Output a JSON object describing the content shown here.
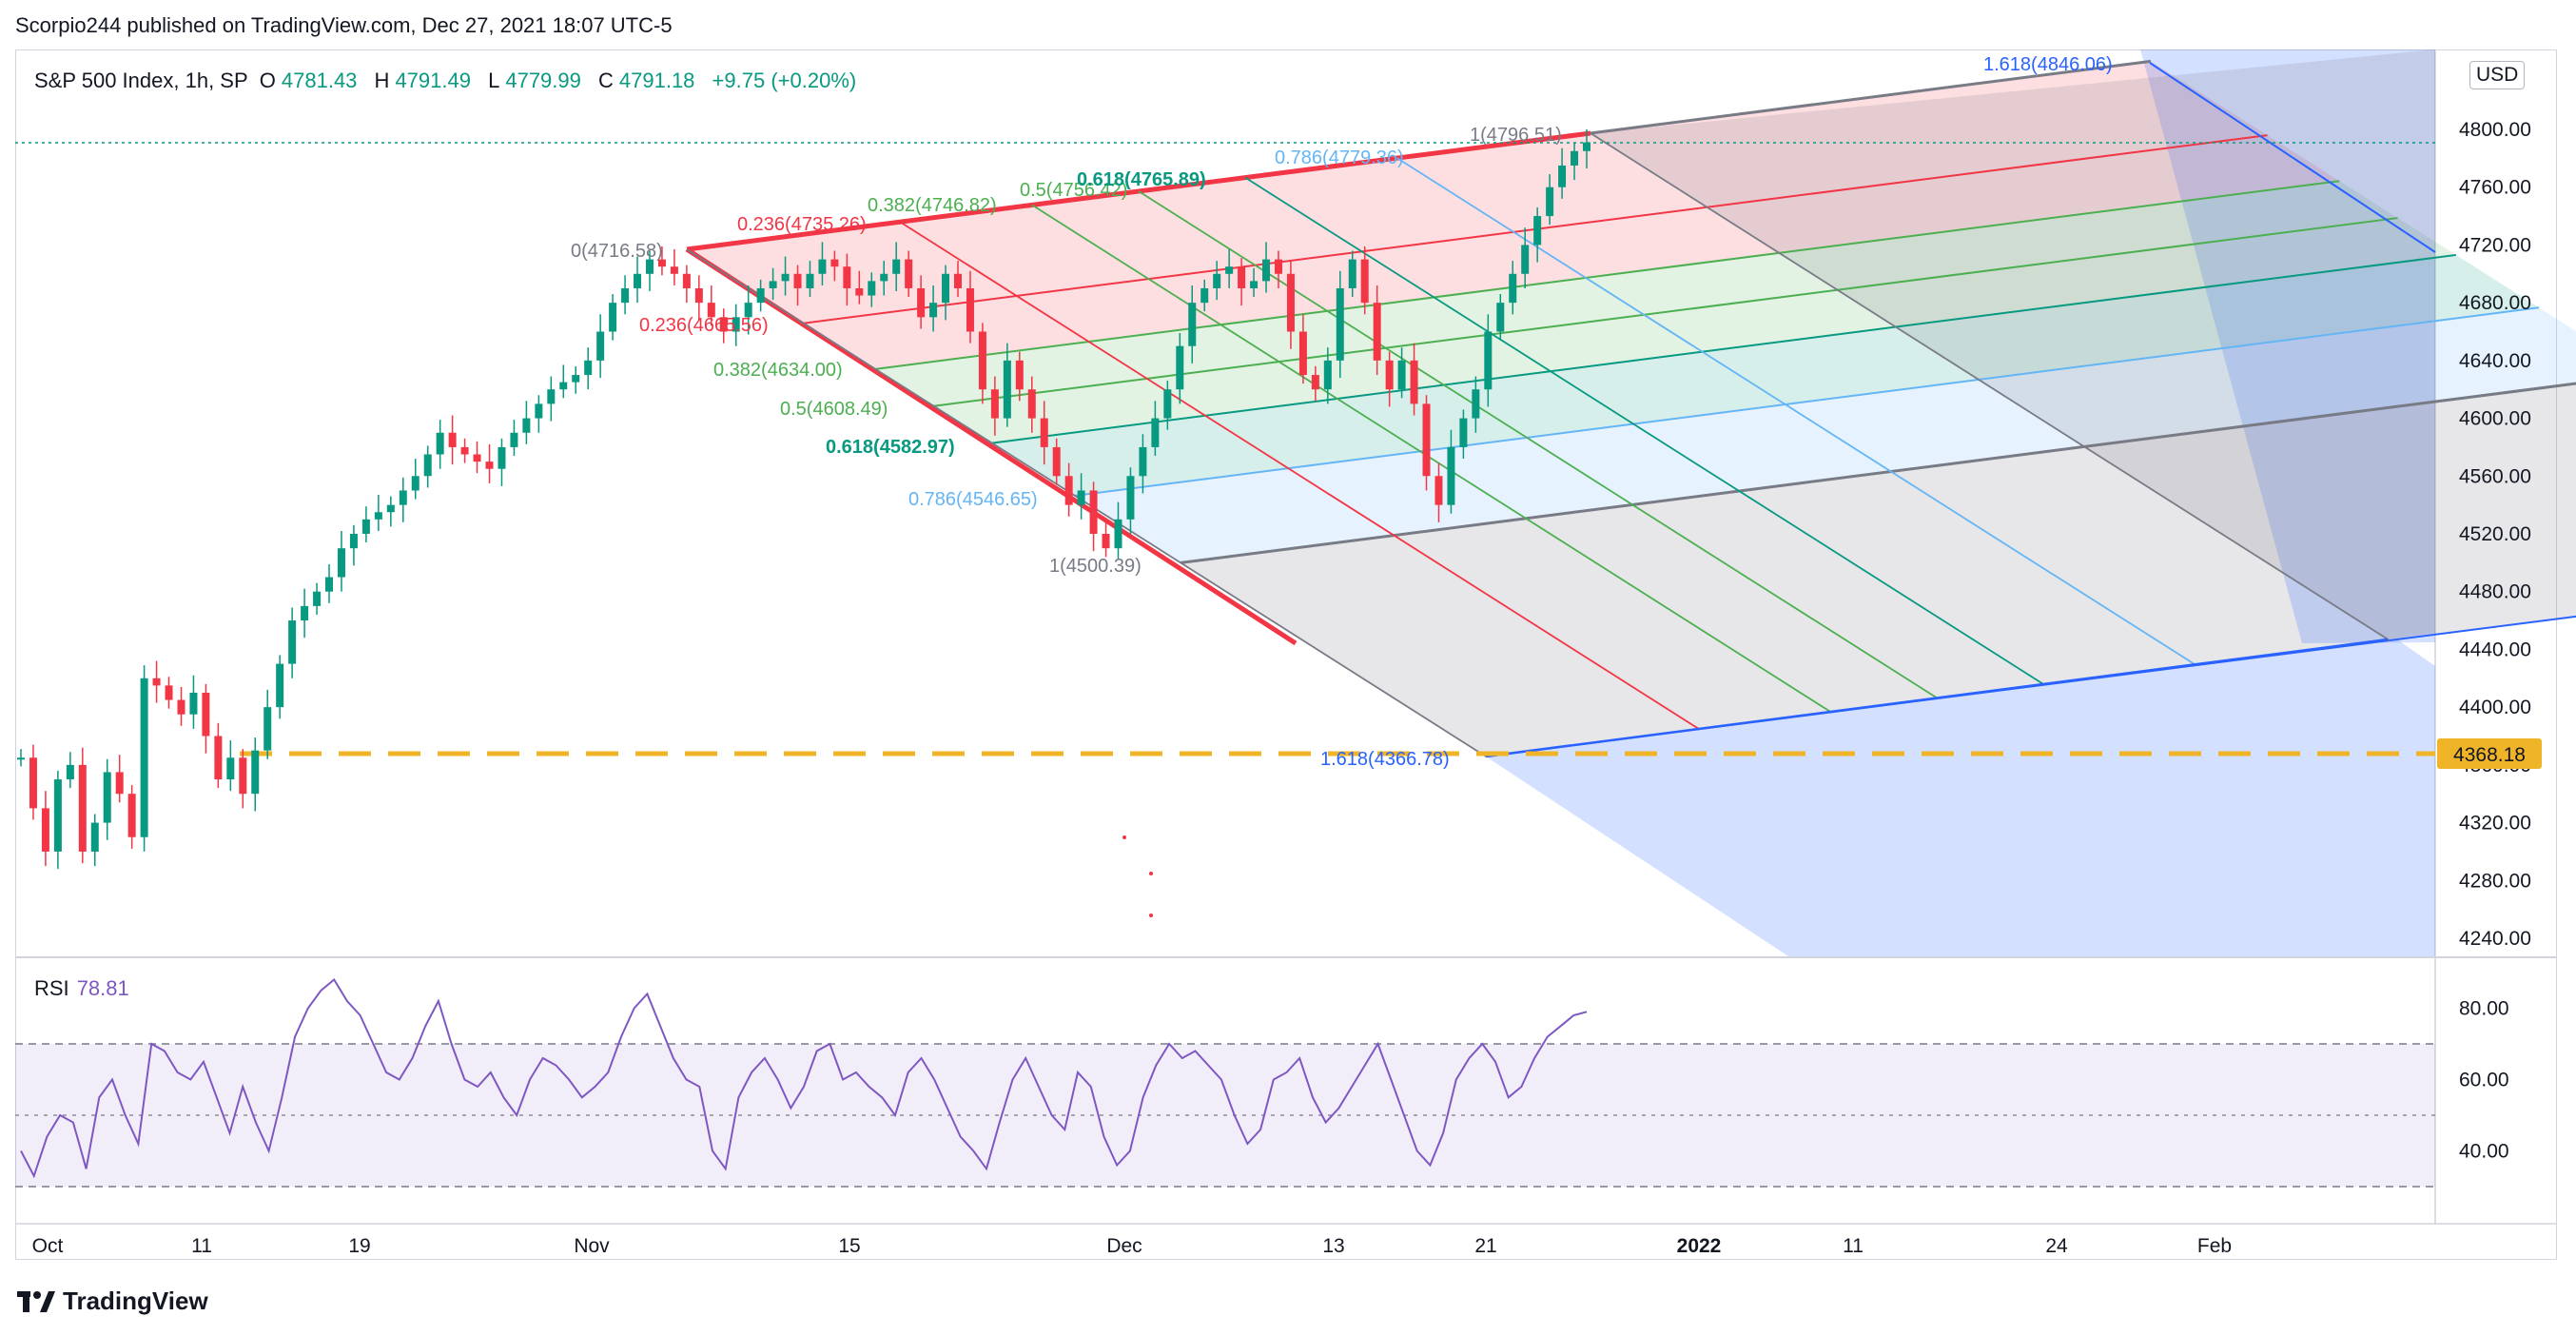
{
  "publisher_line": "Scorpio244 published on TradingView.com, Dec 27, 2021 18:07 UTC-5",
  "header": {
    "symbol": "S&P 500 Index, 1h, SP",
    "o_label": "O",
    "o_value": "4781.43",
    "h_label": "H",
    "h_value": "4791.49",
    "l_label": "L",
    "l_value": "4779.99",
    "c_label": "C",
    "c_value": "4791.18",
    "change": "+9.75 (+0.20%)"
  },
  "rsi": {
    "label": "RSI",
    "value": "78.81"
  },
  "currency": "USD",
  "brand": "TradingView",
  "colors": {
    "up": "#089981",
    "down": "#f23645",
    "rsi": "#7e57c2",
    "trend_blue": "#2962ff",
    "dashed_level": "#f0b429",
    "fib_red": "#f23645",
    "fib_green": "#4caf50",
    "fib_teal": "#089981",
    "fib_lightblue": "#64b5f6",
    "fib_gray": "#787b86"
  },
  "chart_data": [
    {
      "type": "candlestick",
      "title": "S&P 500 Index, 1h, SP",
      "price_axis": [
        "4800.00",
        "4760.00",
        "4720.00",
        "4680.00",
        "4640.00",
        "4600.00",
        "4560.00",
        "4520.00",
        "4480.00",
        "4440.00",
        "4400.00",
        "4360.00",
        "4320.00",
        "4280.00",
        "4240.00"
      ],
      "time_axis": [
        "Oct",
        "11",
        "19",
        "Nov",
        "15",
        "Dec",
        "13",
        "21",
        "2022",
        "11",
        "24",
        "Feb"
      ],
      "ylim": [
        4220,
        4830
      ],
      "last_price": "4791.18",
      "horizontal_level": "4368.18",
      "fib_channel_upper": [
        {
          "label": "0(4716.58)",
          "color": "#787b86"
        },
        {
          "label": "0.236(4735.26)",
          "color": "#f23645"
        },
        {
          "label": "0.382(4746.82)",
          "color": "#4caf50"
        },
        {
          "label": "0.5(4756.42)",
          "color": "#4caf50"
        },
        {
          "label": "0.618(4765.89)",
          "color": "#089981"
        },
        {
          "label": "0.786(4779.36)",
          "color": "#64b5f6"
        },
        {
          "label": "1(4796.51)",
          "color": "#787b86"
        },
        {
          "label": "1.618(4846.06)",
          "color": "#2962ff"
        }
      ],
      "fib_channel_lower": [
        {
          "label": "0(4716.58)",
          "color": "#787b86"
        },
        {
          "label": "0.236(4665.56)",
          "color": "#f23645"
        },
        {
          "label": "0.382(4634.00)",
          "color": "#4caf50"
        },
        {
          "label": "0.5(4608.49)",
          "color": "#4caf50"
        },
        {
          "label": "0.618(4582.97)",
          "color": "#089981"
        },
        {
          "label": "0.786(4546.65)",
          "color": "#64b5f6"
        },
        {
          "label": "1(4500.39)",
          "color": "#787b86"
        },
        {
          "label": "1.618(4366.78)",
          "color": "#2962ff"
        }
      ],
      "close_path": [
        [
          0,
          4365
        ],
        [
          1,
          4330
        ],
        [
          2,
          4300
        ],
        [
          3,
          4350
        ],
        [
          4,
          4360
        ],
        [
          5,
          4300
        ],
        [
          6,
          4320
        ],
        [
          7,
          4355
        ],
        [
          8,
          4340
        ],
        [
          9,
          4310
        ],
        [
          10,
          4420
        ],
        [
          11,
          4415
        ],
        [
          12,
          4405
        ],
        [
          13,
          4395
        ],
        [
          14,
          4410
        ],
        [
          15,
          4380
        ],
        [
          16,
          4350
        ],
        [
          17,
          4365
        ],
        [
          18,
          4340
        ],
        [
          19,
          4370
        ],
        [
          20,
          4400
        ],
        [
          21,
          4430
        ],
        [
          22,
          4460
        ],
        [
          23,
          4470
        ],
        [
          24,
          4480
        ],
        [
          25,
          4490
        ],
        [
          26,
          4510
        ],
        [
          27,
          4520
        ],
        [
          28,
          4530
        ],
        [
          29,
          4535
        ],
        [
          30,
          4540
        ],
        [
          31,
          4550
        ],
        [
          32,
          4560
        ],
        [
          33,
          4575
        ],
        [
          34,
          4590
        ],
        [
          35,
          4580
        ],
        [
          36,
          4575
        ],
        [
          37,
          4570
        ],
        [
          38,
          4565
        ],
        [
          39,
          4580
        ],
        [
          40,
          4590
        ],
        [
          41,
          4600
        ],
        [
          42,
          4610
        ],
        [
          43,
          4620
        ],
        [
          44,
          4625
        ],
        [
          45,
          4630
        ],
        [
          46,
          4640
        ],
        [
          47,
          4660
        ],
        [
          48,
          4680
        ],
        [
          49,
          4690
        ],
        [
          50,
          4700
        ],
        [
          51,
          4710
        ],
        [
          52,
          4705
        ],
        [
          53,
          4700
        ],
        [
          54,
          4690
        ],
        [
          55,
          4680
        ],
        [
          56,
          4670
        ],
        [
          57,
          4660
        ],
        [
          58,
          4670
        ],
        [
          59,
          4680
        ],
        [
          60,
          4690
        ],
        [
          61,
          4695
        ],
        [
          62,
          4700
        ],
        [
          63,
          4690
        ],
        [
          64,
          4700
        ],
        [
          65,
          4710
        ],
        [
          66,
          4705
        ],
        [
          67,
          4690
        ],
        [
          68,
          4685
        ],
        [
          69,
          4695
        ],
        [
          70,
          4700
        ],
        [
          71,
          4710
        ],
        [
          72,
          4690
        ],
        [
          73,
          4670
        ],
        [
          74,
          4680
        ],
        [
          75,
          4700
        ],
        [
          76,
          4690
        ],
        [
          77,
          4660
        ],
        [
          78,
          4620
        ],
        [
          79,
          4600
        ],
        [
          80,
          4640
        ],
        [
          81,
          4620
        ],
        [
          82,
          4600
        ],
        [
          83,
          4580
        ],
        [
          84,
          4560
        ],
        [
          85,
          4540
        ],
        [
          86,
          4550
        ],
        [
          87,
          4520
        ],
        [
          88,
          4510
        ],
        [
          89,
          4530
        ],
        [
          90,
          4560
        ],
        [
          91,
          4580
        ],
        [
          92,
          4600
        ],
        [
          93,
          4620
        ],
        [
          94,
          4650
        ],
        [
          95,
          4680
        ],
        [
          96,
          4690
        ],
        [
          97,
          4700
        ],
        [
          98,
          4705
        ],
        [
          99,
          4690
        ],
        [
          100,
          4695
        ],
        [
          101,
          4710
        ],
        [
          102,
          4700
        ],
        [
          103,
          4660
        ],
        [
          104,
          4630
        ],
        [
          105,
          4620
        ],
        [
          106,
          4640
        ],
        [
          107,
          4690
        ],
        [
          108,
          4710
        ],
        [
          109,
          4680
        ],
        [
          110,
          4640
        ],
        [
          111,
          4620
        ],
        [
          112,
          4640
        ],
        [
          113,
          4610
        ],
        [
          114,
          4560
        ],
        [
          115,
          4540
        ],
        [
          116,
          4580
        ],
        [
          117,
          4600
        ],
        [
          118,
          4620
        ],
        [
          119,
          4660
        ],
        [
          120,
          4680
        ],
        [
          121,
          4700
        ],
        [
          122,
          4720
        ],
        [
          123,
          4740
        ],
        [
          124,
          4760
        ],
        [
          125,
          4775
        ],
        [
          126,
          4785
        ],
        [
          127,
          4791
        ]
      ],
      "rsi_series": {
        "name": "RSI",
        "levels": [
          "80.00",
          "60.00",
          "40.00"
        ],
        "upper": 70,
        "mid": 50,
        "lower": 30,
        "values": [
          40,
          33,
          44,
          50,
          48,
          35,
          55,
          60,
          50,
          42,
          70,
          68,
          62,
          60,
          65,
          55,
          45,
          58,
          48,
          40,
          55,
          72,
          80,
          85,
          88,
          82,
          78,
          70,
          62,
          60,
          66,
          75,
          82,
          70,
          60,
          58,
          62,
          55,
          50,
          60,
          66,
          64,
          60,
          55,
          58,
          62,
          72,
          80,
          84,
          75,
          66,
          60,
          58,
          40,
          35,
          55,
          62,
          66,
          60,
          52,
          58,
          68,
          70,
          60,
          62,
          58,
          55,
          50,
          62,
          66,
          60,
          52,
          44,
          40,
          35,
          48,
          60,
          66,
          58,
          50,
          46,
          62,
          58,
          44,
          36,
          40,
          55,
          64,
          70,
          66,
          68,
          64,
          60,
          50,
          42,
          46,
          60,
          62,
          66,
          55,
          48,
          52,
          58,
          64,
          70,
          60,
          50,
          40,
          36,
          45,
          60,
          66,
          70,
          65,
          55,
          58,
          66,
          72,
          75,
          78,
          79
        ]
      }
    }
  ]
}
